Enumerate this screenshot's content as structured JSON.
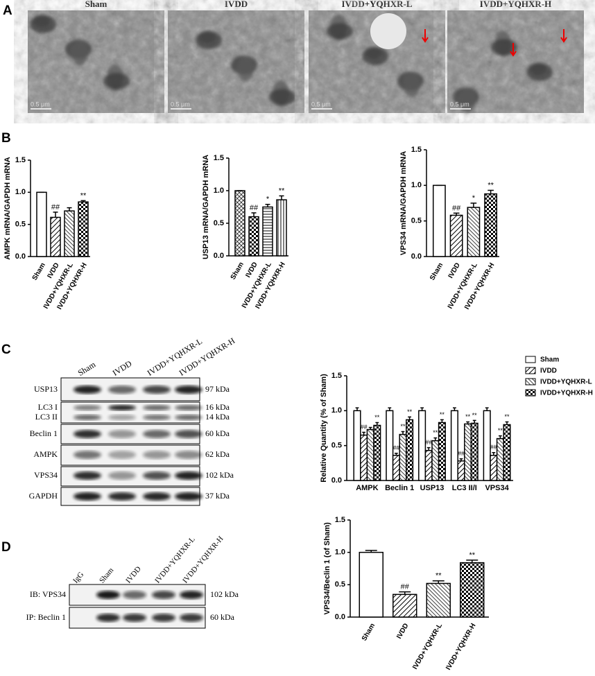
{
  "panel_labels": [
    "A",
    "B",
    "C",
    "D"
  ],
  "micrographs": {
    "titles": [
      "Sham",
      "IVDD",
      "IVDD+YQHXR-L",
      "IVDD+YQHXR-H"
    ],
    "scale_bar": "0.5 μm"
  },
  "western_blot": {
    "lanes": [
      "Sham",
      "IVDD",
      "IVDD+YQHXR-L",
      "IVDD+YQHXR-H"
    ],
    "rows": [
      {
        "label": "USP13",
        "kda": "97 kDa"
      },
      {
        "label": "LC3  I",
        "kda": "16 kDa"
      },
      {
        "label": "LC3 II",
        "kda": "14 kDa"
      },
      {
        "label": "Beclin 1",
        "kda": "60 kDa"
      },
      {
        "label": "AMPK",
        "kda": "62 kDa"
      },
      {
        "label": "VPS34",
        "kda": "102 kDa"
      },
      {
        "label": "GAPDH",
        "kda": "37 kDa"
      }
    ]
  },
  "ip_blot": {
    "lanes": [
      "IgG",
      "Sham",
      "IVDD",
      "IVDD+YQHXR-L",
      "IVDD+YQHXR-H"
    ],
    "rows": [
      {
        "label": "IB: VPS34",
        "kda": "102 kDa"
      },
      {
        "label": "IP: Beclin 1",
        "kda": "60 kDa"
      }
    ]
  },
  "chart_data": [
    {
      "type": "bar",
      "y_label": "AMPK mRNA/GAPDH mRNA",
      "color": "#000000",
      "categories": [
        "Sham",
        "IVDD",
        "IVDD+YQHXR-L",
        "IVDD+YQHXR-H"
      ],
      "values": [
        1.0,
        0.61,
        0.71,
        0.85
      ],
      "errors": [
        0,
        0.08,
        0.05,
        0.02
      ],
      "annotations": [
        null,
        "##",
        null,
        "**"
      ],
      "patterns": [
        "none",
        "diag",
        "diag-back",
        "checker"
      ],
      "ylim": [
        0,
        1.5
      ],
      "yticks": [
        {
          "value": 0,
          "label": "0.0"
        },
        {
          "value": 0.5,
          "label": "0.5"
        },
        {
          "value": 1,
          "label": "1.0"
        },
        {
          "value": 1.5,
          "label": "1.5"
        }
      ]
    },
    {
      "type": "bar",
      "y_label": "USP13 mRNA/GAPDH mRNA",
      "color": "#000000",
      "categories": [
        "Sham",
        "IVDD",
        "IVDD+YQHXR-L",
        "IVDD+YQHXR-H"
      ],
      "values": [
        1.0,
        0.6,
        0.75,
        0.86
      ],
      "errors": [
        0,
        0.06,
        0.04,
        0.06
      ],
      "annotations": [
        null,
        "##",
        "*",
        "**"
      ],
      "patterns": [
        "cross",
        "checker",
        "hlines",
        "vlines"
      ],
      "ylim": [
        0,
        1.5
      ],
      "yticks": [
        {
          "value": 0,
          "label": "0.0"
        },
        {
          "value": 0.5,
          "label": "0.5"
        },
        {
          "value": 1,
          "label": "1.0"
        },
        {
          "value": 1.5,
          "label": "1.5"
        }
      ]
    },
    {
      "type": "bar",
      "y_label": "VPS34 mRNA/GAPDH mRNA",
      "color": "#000000",
      "categories": [
        "Sham",
        "IVDD",
        "IVDD+YQHXR-L",
        "IVDD+YQHXR-H"
      ],
      "values": [
        1.0,
        0.58,
        0.69,
        0.88
      ],
      "errors": [
        0,
        0.03,
        0.06,
        0.05
      ],
      "annotations": [
        null,
        "##",
        "*",
        "**"
      ],
      "patterns": [
        "none",
        "diag",
        "diag-back",
        "checker"
      ],
      "ylim": [
        0,
        1.5
      ],
      "yticks": [
        {
          "value": 0,
          "label": "0.0"
        },
        {
          "value": 0.5,
          "label": "0.5"
        },
        {
          "value": 1,
          "label": "1.0"
        },
        {
          "value": 1.5,
          "label": "1.5"
        }
      ]
    },
    {
      "type": "grouped-bar",
      "y_label": "Relative Quantity (% of Sham)",
      "color": "#000000",
      "legend": "upper-right",
      "categories": [
        "AMPK",
        "Beclin 1",
        "USP13",
        "LC3 II/I",
        "VPS34"
      ],
      "series": [
        {
          "name": "Sham",
          "pattern": "none",
          "values": [
            1.0,
            1.0,
            1.0,
            1.0,
            1.0
          ],
          "errors": [
            0.04,
            0.04,
            0.04,
            0.04,
            0.04
          ],
          "annotations": [
            null,
            null,
            null,
            null,
            null
          ]
        },
        {
          "name": "IVDD",
          "pattern": "diag",
          "values": [
            0.65,
            0.36,
            0.43,
            0.28,
            0.36
          ],
          "errors": [
            0.04,
            0.03,
            0.04,
            0.03,
            0.04
          ],
          "annotations": [
            "##",
            "##",
            "##",
            "##",
            "##"
          ]
        },
        {
          "name": "IVDD+YQHXR-L",
          "pattern": "diag-back",
          "values": [
            0.73,
            0.66,
            0.57,
            0.81,
            0.6
          ],
          "errors": [
            0.03,
            0.04,
            0.04,
            0.03,
            0.04
          ],
          "annotations": [
            null,
            "**",
            "**",
            "**",
            "**"
          ]
        },
        {
          "name": "IVDD+YQHXR-H",
          "pattern": "checker",
          "values": [
            0.79,
            0.87,
            0.83,
            0.82,
            0.8
          ],
          "errors": [
            0.04,
            0.04,
            0.04,
            0.04,
            0.04
          ],
          "annotations": [
            "**",
            "**",
            "**",
            "**",
            "**"
          ]
        }
      ],
      "ylim": [
        0,
        1.5
      ],
      "yticks": [
        {
          "value": 0,
          "label": "0.0"
        },
        {
          "value": 0.5,
          "label": "0.5"
        },
        {
          "value": 1,
          "label": "1.0"
        },
        {
          "value": 1.5,
          "label": "1.5"
        }
      ]
    },
    {
      "type": "bar",
      "y_label": "VPS34/Beclin 1 (of Sham)",
      "color": "#000000",
      "categories": [
        "Sham",
        "IVDD",
        "IVDD+YQHXR-L",
        "IVDD+YQHXR-H"
      ],
      "values": [
        1.0,
        0.35,
        0.52,
        0.84
      ],
      "errors": [
        0.03,
        0.04,
        0.04,
        0.04
      ],
      "annotations": [
        null,
        "##",
        "**",
        "**"
      ],
      "patterns": [
        "none",
        "diag",
        "diag-back",
        "checker"
      ],
      "ylim": [
        0,
        1.5
      ],
      "yticks": [
        {
          "value": 0,
          "label": "0.0"
        },
        {
          "value": 0.5,
          "label": "0.5"
        },
        {
          "value": 1,
          "label": "1.0"
        },
        {
          "value": 1.5,
          "label": "1.5"
        }
      ]
    }
  ]
}
